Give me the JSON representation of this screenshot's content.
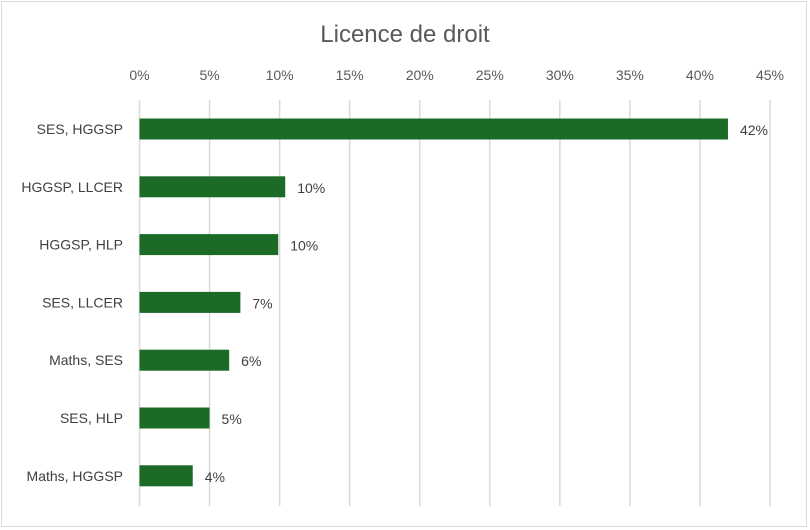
{
  "chart_data": {
    "type": "bar",
    "orientation": "horizontal",
    "title": "Licence de droit",
    "xlabel": "",
    "ylabel": "",
    "xlim": [
      0,
      45
    ],
    "x_ticks": [
      "0%",
      "5%",
      "10%",
      "15%",
      "20%",
      "25%",
      "30%",
      "35%",
      "40%",
      "45%"
    ],
    "grid": true,
    "legend": "none",
    "color": "#1b6b27",
    "categories": [
      "SES, HGGSP",
      "HGGSP, LLCER",
      "HGGSP, HLP",
      "SES, LLCER",
      "Maths, SES",
      "SES, HLP",
      "Maths, HGGSP"
    ],
    "values": [
      42,
      10.4,
      9.9,
      7.2,
      6.4,
      5.0,
      3.8
    ],
    "data_labels": [
      "42%",
      "10%",
      "10%",
      "7%",
      "6%",
      "5%",
      "4%"
    ]
  }
}
